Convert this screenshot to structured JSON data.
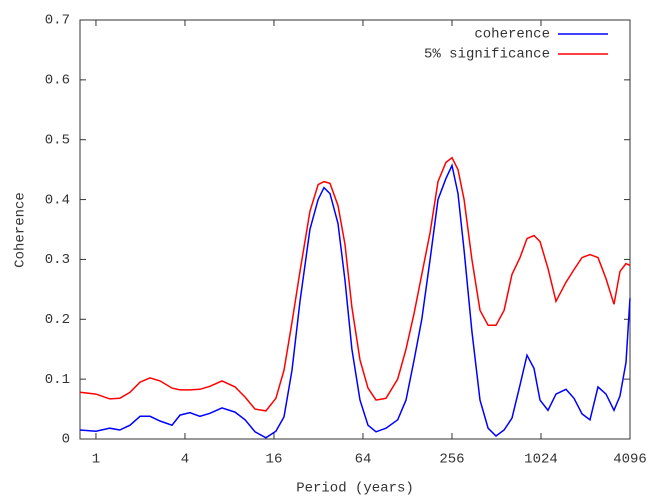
{
  "chart_data": {
    "type": "line",
    "x_label": "Period (years)",
    "y_label": "Coherence",
    "x": [
      0.78,
      1,
      1.24,
      1.45,
      1.7,
      1.99,
      2.32,
      2.71,
      3.27,
      3.7,
      4.32,
      5.05,
      5.9,
      7.12,
      8.72,
      10.2,
      11.9,
      14.1,
      16.5,
      18.7,
      21.2,
      24,
      28,
      31.8,
      34.9,
      38.3,
      43.4,
      48.4,
      53.9,
      61.1,
      69.2,
      78.4,
      91.6,
      110,
      125,
      142,
      160,
      182,
      206,
      233,
      256,
      281,
      309,
      349,
      396,
      449,
      508,
      576,
      652,
      738,
      823,
      918,
      1008,
      1142,
      1294,
      1512,
      1713,
      1939,
      2197,
      2489,
      2819,
      3193,
      3505,
      3849,
      4096
    ],
    "series": [
      {
        "name": "coherence",
        "color": "#0000ff",
        "values": [
          0.015,
          0.013,
          0.018,
          0.015,
          0.023,
          0.038,
          0.038,
          0.03,
          0.023,
          0.04,
          0.044,
          0.038,
          0.043,
          0.052,
          0.045,
          0.032,
          0.012,
          0.002,
          0.013,
          0.037,
          0.115,
          0.23,
          0.35,
          0.4,
          0.42,
          0.41,
          0.36,
          0.265,
          0.15,
          0.065,
          0.023,
          0.012,
          0.018,
          0.032,
          0.065,
          0.132,
          0.2,
          0.3,
          0.4,
          0.435,
          0.457,
          0.41,
          0.315,
          0.18,
          0.065,
          0.018,
          0.005,
          0.015,
          0.035,
          0.09,
          0.14,
          0.118,
          0.065,
          0.048,
          0.075,
          0.083,
          0.068,
          0.042,
          0.032,
          0.087,
          0.075,
          0.048,
          0.072,
          0.128,
          0.235
        ]
      },
      {
        "name": "5% significance",
        "color": "#ff0000",
        "values": [
          0.078,
          0.075,
          0.067,
          0.068,
          0.078,
          0.095,
          0.102,
          0.097,
          0.085,
          0.082,
          0.082,
          0.083,
          0.088,
          0.097,
          0.087,
          0.07,
          0.05,
          0.047,
          0.068,
          0.115,
          0.195,
          0.28,
          0.38,
          0.425,
          0.43,
          0.427,
          0.39,
          0.325,
          0.22,
          0.132,
          0.085,
          0.065,
          0.068,
          0.1,
          0.15,
          0.21,
          0.275,
          0.345,
          0.43,
          0.462,
          0.47,
          0.45,
          0.4,
          0.3,
          0.215,
          0.19,
          0.19,
          0.215,
          0.275,
          0.303,
          0.335,
          0.34,
          0.33,
          0.285,
          0.23,
          0.262,
          0.283,
          0.303,
          0.308,
          0.303,
          0.268,
          0.225,
          0.28,
          0.293,
          0.29
        ]
      }
    ],
    "x_log": true,
    "log_base": 2,
    "xlim": [
      0.78,
      4096
    ],
    "xticks": [
      1,
      4,
      16,
      64,
      256,
      1024,
      4096
    ],
    "ylim": [
      0,
      0.7
    ],
    "yticks": [
      0,
      0.1,
      0.2,
      0.3,
      0.4,
      0.5,
      0.6,
      0.7
    ],
    "legend": "top-right"
  }
}
